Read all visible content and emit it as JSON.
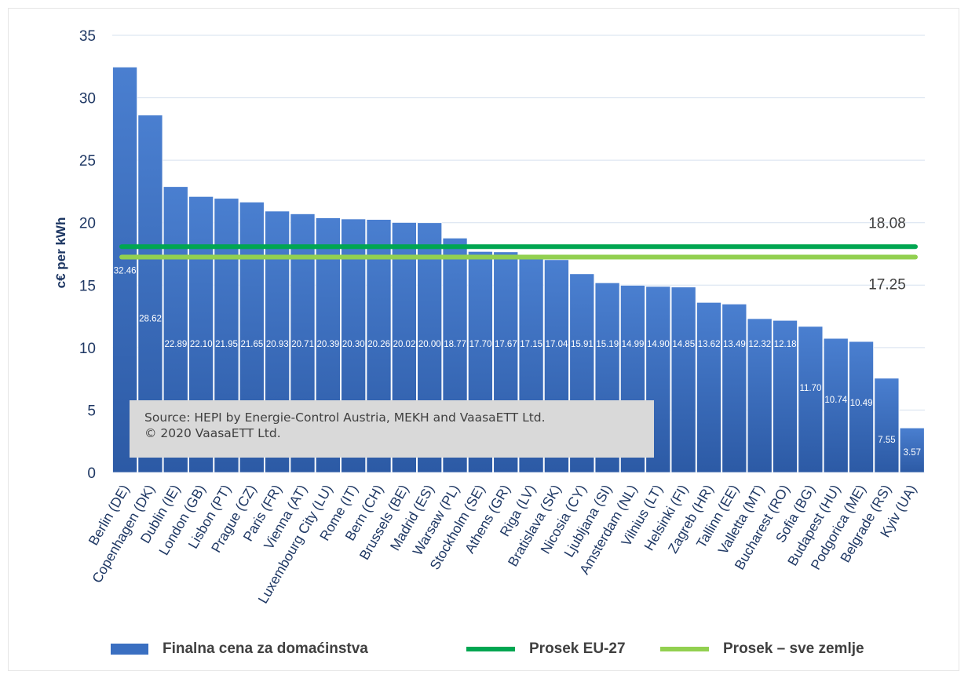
{
  "chart_data": {
    "type": "bar",
    "ylabel": "c€ per kWh",
    "ylim": [
      0,
      35
    ],
    "yticks": [
      0,
      5,
      10,
      15,
      20,
      25,
      30,
      35
    ],
    "categories": [
      "Berlin (DE)",
      "Copenhagen (DK)",
      "Dublin (IE)",
      "London (GB)",
      "Lisbon (PT)",
      "Prague (CZ)",
      "Paris (FR)",
      "Vienna (AT)",
      "Luxembourg City (LU)",
      "Rome (IT)",
      "Bern (CH)",
      "Brussels (BE)",
      "Madrid (ES)",
      "Warsaw (PL)",
      "Stockholm (SE)",
      "Athens (GR)",
      "Riga (LV)",
      "Bratislava (SK)",
      "Nicosia (CY)",
      "Ljubljana (SI)",
      "Amsterdam (NL)",
      "Vilnius (LT)",
      "Helsinki (FI)",
      "Zagreb (HR)",
      "Tallinn (EE)",
      "Valletta (MT)",
      "Bucharest (RO)",
      "Sofia (BG)",
      "Budapest (HU)",
      "Podgorica (ME)",
      "Belgrade (RS)",
      "Kyiv (UA)"
    ],
    "series": [
      {
        "name": "Finalna cena za domaćinstva",
        "color": "#3a6fc1",
        "values": [
          32.46,
          28.62,
          22.89,
          22.1,
          21.95,
          21.65,
          20.93,
          20.71,
          20.39,
          20.3,
          20.26,
          20.02,
          20.0,
          18.77,
          17.7,
          17.67,
          17.15,
          17.04,
          15.91,
          15.19,
          14.99,
          14.9,
          14.85,
          13.62,
          13.49,
          12.32,
          12.18,
          11.7,
          10.74,
          10.49,
          7.55,
          3.57
        ],
        "labels": [
          "32.46",
          "28.62",
          "22.89",
          "22.10",
          "21.95",
          "21.65",
          "20.93",
          "20.71",
          "20.39",
          "20.30",
          "20.26",
          "20.02",
          "20.00",
          "18.77",
          "17.70",
          "17.67",
          "17.15",
          "17.04",
          "15.91",
          "15.19",
          "14.99",
          "14.90",
          "14.85",
          "13.62",
          "13.49",
          "12.32",
          "12.18",
          "11.70",
          "10.74",
          "10.49",
          "7.55",
          "3.57"
        ]
      }
    ],
    "reference_lines": [
      {
        "name": "Prosek EU-27",
        "value": 18.08,
        "label": "18.08",
        "color": "#00a651"
      },
      {
        "name": "Prosek – sve zemlje",
        "value": 17.25,
        "label": "17.25",
        "color": "#92d050"
      }
    ],
    "grid": true,
    "legend_position": "bottom"
  },
  "source": {
    "line1": "Source: HEPI by Energie-Control Austria, MEKH and VaasaETT Ltd.",
    "line2": "© 2020 VaasaETT Ltd."
  },
  "legend": {
    "bar_label": "Finalna cena za domaćinstva",
    "eu_label": "Prosek EU-27",
    "all_label": "Prosek – sve zemlje"
  }
}
